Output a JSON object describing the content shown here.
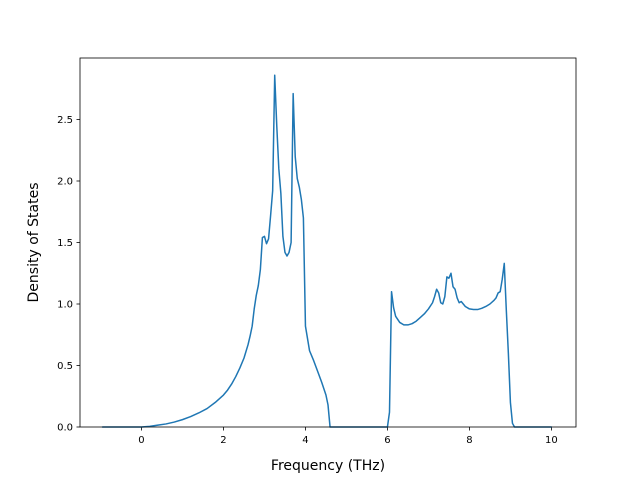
{
  "chart_data": {
    "type": "line",
    "title": "",
    "xlabel": "Frequency (THz)",
    "ylabel": "Density of States",
    "xlim": [
      -1.5,
      10.6
    ],
    "ylim": [
      0.0,
      3.0
    ],
    "xticks": [
      0,
      2,
      4,
      6,
      8,
      10
    ],
    "yticks": [
      0.0,
      0.5,
      1.0,
      1.5,
      2.0,
      2.5
    ],
    "xtick_labels": [
      "0",
      "2",
      "4",
      "6",
      "8",
      "10"
    ],
    "ytick_labels": [
      "0.0",
      "0.5",
      "1.0",
      "1.5",
      "2.0",
      "2.5"
    ],
    "grid": false,
    "legend": "none",
    "series": [
      {
        "color": "#1f77b4",
        "x": [
          -0.95,
          -0.5,
          0.0,
          0.2,
          0.4,
          0.6,
          0.8,
          1.0,
          1.2,
          1.4,
          1.6,
          1.8,
          2.0,
          2.1,
          2.2,
          2.3,
          2.4,
          2.5,
          2.6,
          2.65,
          2.7,
          2.75,
          2.8,
          2.85,
          2.9,
          2.95,
          3.0,
          3.05,
          3.1,
          3.15,
          3.2,
          3.25,
          3.3,
          3.35,
          3.4,
          3.45,
          3.5,
          3.55,
          3.6,
          3.65,
          3.7,
          3.75,
          3.8,
          3.85,
          3.9,
          3.95,
          4.0,
          4.1,
          4.2,
          4.3,
          4.4,
          4.5,
          4.55,
          4.6,
          5.0,
          5.5,
          6.0,
          6.05,
          6.1,
          6.15,
          6.2,
          6.3,
          6.4,
          6.5,
          6.6,
          6.7,
          6.8,
          6.9,
          7.0,
          7.1,
          7.15,
          7.2,
          7.25,
          7.3,
          7.35,
          7.4,
          7.45,
          7.5,
          7.55,
          7.6,
          7.65,
          7.7,
          7.75,
          7.8,
          7.85,
          7.9,
          8.0,
          8.1,
          8.2,
          8.3,
          8.4,
          8.5,
          8.6,
          8.65,
          8.7,
          8.75,
          8.8,
          8.85,
          8.9,
          8.95,
          9.0,
          9.05,
          9.1,
          9.15,
          9.2,
          9.5,
          10.0
        ],
        "y": [
          0.0,
          0.0,
          0.0,
          0.005,
          0.015,
          0.025,
          0.04,
          0.06,
          0.085,
          0.115,
          0.15,
          0.2,
          0.26,
          0.3,
          0.35,
          0.41,
          0.48,
          0.56,
          0.67,
          0.74,
          0.82,
          0.96,
          1.07,
          1.15,
          1.28,
          1.54,
          1.55,
          1.49,
          1.53,
          1.72,
          1.92,
          2.86,
          2.45,
          2.1,
          1.9,
          1.55,
          1.42,
          1.39,
          1.42,
          1.5,
          2.71,
          2.2,
          2.02,
          1.95,
          1.85,
          1.7,
          0.82,
          0.62,
          0.54,
          0.45,
          0.36,
          0.26,
          0.18,
          0.0,
          0.0,
          0.0,
          0.0,
          0.12,
          1.1,
          0.97,
          0.9,
          0.85,
          0.83,
          0.83,
          0.84,
          0.86,
          0.89,
          0.92,
          0.96,
          1.01,
          1.06,
          1.12,
          1.09,
          1.01,
          1.0,
          1.06,
          1.22,
          1.21,
          1.25,
          1.14,
          1.12,
          1.05,
          1.01,
          1.02,
          1.0,
          0.98,
          0.96,
          0.955,
          0.955,
          0.965,
          0.98,
          1.0,
          1.03,
          1.05,
          1.09,
          1.1,
          1.2,
          1.33,
          0.95,
          0.6,
          0.2,
          0.03,
          0.0,
          0.0,
          0.0,
          0.0,
          0.0
        ]
      }
    ]
  }
}
